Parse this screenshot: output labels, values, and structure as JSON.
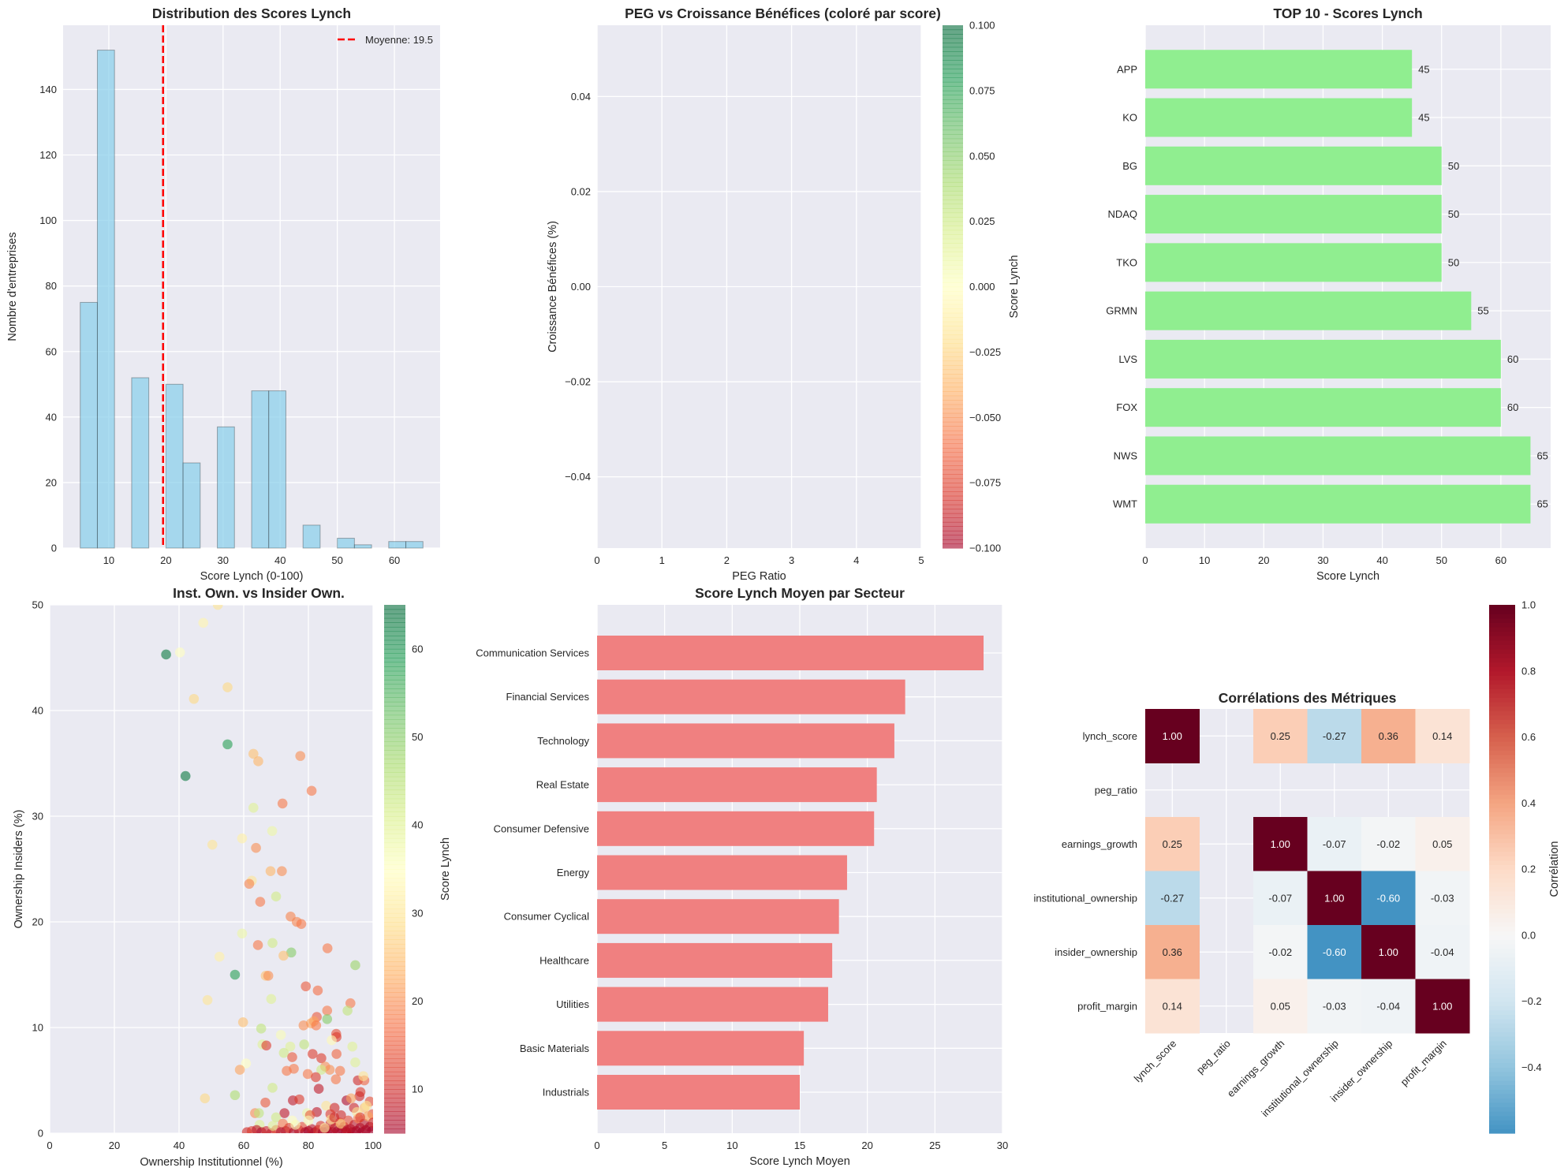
{
  "colors": {
    "axes_bg": "#eaeaf2",
    "grid": "#ffffff",
    "hist_bar": "#87ceeb",
    "mean_line": "#ff0000",
    "top10_bar": "#90ee90",
    "sector_bar": "#f08080"
  },
  "chart_data": [
    {
      "type": "bar",
      "title": "Distribution des Scores Lynch",
      "xlabel": "Score Lynch (0-100)",
      "ylabel": "Nombre d'entreprises",
      "bin_start": 5,
      "bin_width": 3,
      "counts": [
        75,
        152,
        0,
        52,
        0,
        50,
        26,
        0,
        37,
        0,
        48,
        48,
        0,
        7,
        0,
        3,
        1,
        0,
        2,
        2
      ],
      "xlim": [
        2,
        68
      ],
      "ylim": [
        0,
        159.6
      ],
      "xticks": [
        "10",
        "20",
        "30",
        "40",
        "50",
        "60"
      ],
      "yticks": [
        "0",
        "20",
        "40",
        "60",
        "80",
        "100",
        "120",
        "140"
      ],
      "mean": 19.5,
      "legend": {
        "label": "Moyenne: 19.5",
        "position": "top-right"
      },
      "grid": true
    },
    {
      "type": "scatter",
      "title": "PEG vs Croissance Bénéfices (coloré par score)",
      "xlabel": "PEG Ratio",
      "ylabel": "Croissance Bénéfices (%)",
      "points": [],
      "xlim": [
        0,
        5
      ],
      "ylim": [
        -0.055,
        0.055
      ],
      "xticks": [
        "0",
        "1",
        "2",
        "3",
        "4",
        "5"
      ],
      "ytick_values": [
        -0.04,
        -0.02,
        0,
        0.02,
        0.04
      ],
      "yticks": [
        "−0.04",
        "−0.02",
        "0.00",
        "0.02",
        "0.04"
      ],
      "colorbar": {
        "label": "Score Lynch",
        "range": [
          -0.1,
          0.1
        ],
        "cmap": "RdYlGn",
        "tick_values": [
          -0.1,
          -0.075,
          -0.05,
          -0.025,
          0,
          0.025,
          0.05,
          0.075,
          0.1
        ],
        "ticks": [
          "−0.100",
          "−0.075",
          "−0.050",
          "−0.025",
          "0.000",
          "0.025",
          "0.050",
          "0.075",
          "0.100"
        ]
      },
      "grid": true
    },
    {
      "type": "bar",
      "orientation": "horizontal",
      "title": "TOP 10 - Scores Lynch",
      "xlabel": "Score Lynch",
      "categories": [
        "APP",
        "KO",
        "BG",
        "NDAQ",
        "TKO",
        "GRMN",
        "LVS",
        "FOX",
        "NWS",
        "WMT"
      ],
      "values": [
        45,
        45,
        50,
        50,
        50,
        55,
        60,
        60,
        65,
        65
      ],
      "value_labels": [
        "45",
        "45",
        "50",
        "50",
        "50",
        "55",
        "60",
        "60",
        "65",
        "65"
      ],
      "xlim": [
        0,
        68.4
      ],
      "xticks": [
        "0",
        "10",
        "20",
        "30",
        "40",
        "50",
        "60"
      ],
      "grid": true
    },
    {
      "type": "scatter",
      "title": "Inst. Own. vs Insider Own.",
      "xlabel": "Ownership Institutionnel (%)",
      "ylabel": "Ownership Insiders (%)",
      "xlim": [
        0,
        100
      ],
      "ylim": [
        0,
        50
      ],
      "xticks": [
        "0",
        "20",
        "40",
        "60",
        "80",
        "100"
      ],
      "yticks": [
        "0",
        "10",
        "20",
        "30",
        "40",
        "50"
      ],
      "colorbar": {
        "label": "Score Lynch",
        "range": [
          5,
          65
        ],
        "cmap": "RdYlGn",
        "tick_values": [
          10,
          20,
          30,
          40,
          50,
          60
        ],
        "ticks": [
          "10",
          "20",
          "30",
          "40",
          "50",
          "60"
        ]
      },
      "points_xy_score": [
        [
          52,
          50,
          30
        ],
        [
          47.5,
          48.3,
          33
        ],
        [
          36,
          45.3,
          63
        ],
        [
          40.3,
          45.5,
          35
        ],
        [
          55,
          42.2,
          28
        ],
        [
          44.6,
          41.1,
          28
        ],
        [
          55,
          36.8,
          58
        ],
        [
          63,
          35.9,
          25
        ],
        [
          64.5,
          35.2,
          24
        ],
        [
          77.5,
          35.7,
          20
        ],
        [
          42,
          33.8,
          63
        ],
        [
          81,
          32.4,
          18
        ],
        [
          72,
          31.2,
          18
        ],
        [
          63,
          30.8,
          40
        ],
        [
          68.8,
          28.6,
          38
        ],
        [
          59.5,
          27.9,
          32
        ],
        [
          50.3,
          27.3,
          30
        ],
        [
          63.8,
          27,
          20
        ],
        [
          68.3,
          24.8,
          24
        ],
        [
          71.8,
          24.8,
          20
        ],
        [
          62.5,
          23.9,
          30
        ],
        [
          61.7,
          23.6,
          19
        ],
        [
          70,
          22.4,
          42
        ],
        [
          65.1,
          21.9,
          18
        ],
        [
          74.5,
          20.5,
          19
        ],
        [
          76.4,
          20,
          19
        ],
        [
          77.8,
          19.8,
          18
        ],
        [
          59.5,
          18.9,
          38
        ],
        [
          64.4,
          17.8,
          18
        ],
        [
          68.9,
          18,
          42
        ],
        [
          74.7,
          17.1,
          50
        ],
        [
          72.3,
          16.8,
          25
        ],
        [
          52.5,
          16.7,
          32
        ],
        [
          85.9,
          17.5,
          18
        ],
        [
          94.5,
          15.9,
          48
        ],
        [
          57.3,
          15,
          58
        ],
        [
          66.8,
          14.9,
          25
        ],
        [
          67.6,
          14.9,
          20
        ],
        [
          79.2,
          13.9,
          15
        ],
        [
          82.9,
          13.5,
          17
        ],
        [
          48.8,
          12.6,
          30
        ],
        [
          68.5,
          12.7,
          40
        ],
        [
          93,
          12.3,
          18
        ],
        [
          85.8,
          11.6,
          18
        ],
        [
          92.1,
          11.6,
          44
        ],
        [
          82.6,
          11,
          15
        ],
        [
          85.8,
          10.8,
          50
        ],
        [
          59.8,
          10.5,
          25
        ],
        [
          80.8,
          10.4,
          22
        ],
        [
          78.5,
          10.2,
          20
        ],
        [
          81.7,
          10.6,
          22
        ],
        [
          82.4,
          10.2,
          18
        ],
        [
          65.4,
          9.9,
          44
        ],
        [
          71.5,
          9.3,
          36
        ],
        [
          88.6,
          9.4,
          14
        ],
        [
          88.7,
          9.1,
          12
        ],
        [
          87.2,
          8.8,
          34
        ],
        [
          65.8,
          8.4,
          40
        ],
        [
          74.4,
          8.2,
          40
        ],
        [
          78.7,
          8.4,
          44
        ],
        [
          93.6,
          8.2,
          40
        ],
        [
          67,
          8.3,
          12
        ],
        [
          72.4,
          7.6,
          42
        ],
        [
          81.3,
          7.5,
          12
        ],
        [
          84,
          7.1,
          12
        ],
        [
          88.7,
          7.5,
          16
        ],
        [
          75,
          7.2,
          15
        ],
        [
          94.5,
          6.7,
          40
        ],
        [
          60.7,
          6.6,
          35
        ],
        [
          85.2,
          6.3,
          20
        ],
        [
          86.6,
          6,
          20
        ],
        [
          89.8,
          5.9,
          18
        ],
        [
          84,
          6,
          42
        ],
        [
          73.3,
          5.9,
          18
        ],
        [
          75.5,
          6.1,
          18
        ],
        [
          58.8,
          6,
          22
        ],
        [
          79.8,
          5.6,
          18
        ],
        [
          82.3,
          5.3,
          12
        ],
        [
          88.5,
          5.1,
          18
        ],
        [
          95.3,
          5,
          10
        ],
        [
          97.3,
          5,
          16
        ],
        [
          97,
          5.4,
          30
        ],
        [
          83.2,
          4.2,
          8
        ],
        [
          68.9,
          4.3,
          42
        ],
        [
          96.1,
          3.9,
          12
        ],
        [
          95.8,
          3.5,
          10
        ],
        [
          57.3,
          3.6,
          46
        ],
        [
          48,
          3.3,
          28
        ],
        [
          75.2,
          3.1,
          8
        ],
        [
          77.2,
          3.2,
          12
        ],
        [
          91.8,
          3.1,
          6
        ],
        [
          99,
          3,
          14
        ],
        [
          93.2,
          3.3,
          22
        ],
        [
          66.7,
          2.9,
          15
        ],
        [
          85.5,
          2.6,
          30
        ],
        [
          88.1,
          2.4,
          10
        ],
        [
          94.1,
          2.4,
          10
        ],
        [
          97.3,
          2.4,
          25
        ],
        [
          72.6,
          1.9,
          8
        ],
        [
          63.5,
          1.9,
          20
        ],
        [
          64.7,
          1.9,
          44
        ],
        [
          79.6,
          1.9,
          38
        ],
        [
          82.6,
          2,
          8
        ],
        [
          80.5,
          1.7,
          15
        ],
        [
          86.8,
          1.8,
          12
        ],
        [
          90.1,
          1.7,
          10
        ],
        [
          70,
          1.5,
          42
        ],
        [
          99.8,
          1.8,
          15
        ],
        [
          75,
          1.2,
          35
        ],
        [
          64.9,
          0.8,
          40
        ],
        [
          72.1,
          0.9,
          18
        ],
        [
          61,
          0.1,
          10
        ],
        [
          62.5,
          0.2,
          12
        ],
        [
          64,
          0.3,
          8
        ],
        [
          65.5,
          0.1,
          6
        ],
        [
          67,
          0.2,
          10
        ],
        [
          68.5,
          0,
          8
        ],
        [
          70,
          0.3,
          14
        ],
        [
          71.5,
          0.1,
          6
        ],
        [
          73,
          0.2,
          8
        ],
        [
          74,
          0.5,
          12
        ],
        [
          75.5,
          0.1,
          6
        ],
        [
          77,
          0.3,
          8
        ],
        [
          78,
          0.6,
          14
        ],
        [
          79,
          0.1,
          6
        ],
        [
          80,
          0.2,
          5
        ],
        [
          81,
          0.4,
          8
        ],
        [
          82,
          0.1,
          6
        ],
        [
          83,
          0.3,
          10
        ],
        [
          83.8,
          0.7,
          12
        ],
        [
          84.5,
          0.1,
          5
        ],
        [
          85.3,
          0.4,
          8
        ],
        [
          86,
          0.2,
          6
        ],
        [
          86.8,
          0.9,
          10
        ],
        [
          87.5,
          0.1,
          5
        ],
        [
          88.2,
          0.5,
          8
        ],
        [
          89,
          0.2,
          6
        ],
        [
          89.7,
          1,
          12
        ],
        [
          90.4,
          0.3,
          5
        ],
        [
          91,
          0.6,
          8
        ],
        [
          91.7,
          0.1,
          6
        ],
        [
          92.3,
          1.2,
          14
        ],
        [
          93,
          0.4,
          6
        ],
        [
          93.6,
          0.1,
          5
        ],
        [
          94.2,
          0.8,
          8
        ],
        [
          94.8,
          0.2,
          6
        ],
        [
          95.4,
          1.4,
          18
        ],
        [
          96,
          0.5,
          6
        ],
        [
          96.6,
          0.1,
          5
        ],
        [
          97.2,
          0.9,
          8
        ],
        [
          97.8,
          0.3,
          6
        ],
        [
          98.4,
          1.6,
          22
        ],
        [
          99,
          0.6,
          6
        ],
        [
          99.6,
          0.2,
          5
        ],
        [
          100,
          1,
          10
        ],
        [
          95,
          2,
          30
        ],
        [
          98,
          2.6,
          30
        ],
        [
          90,
          0.9,
          28
        ],
        [
          85,
          0.5,
          32
        ],
        [
          76,
          0.8,
          36
        ],
        [
          69,
          0.7,
          40
        ],
        [
          80,
          1.2,
          36
        ],
        [
          87,
          1.3,
          30
        ],
        [
          92,
          0.3,
          8
        ],
        [
          88,
          1.5,
          10
        ],
        [
          96,
          1.5,
          12
        ]
      ],
      "grid": true
    },
    {
      "type": "bar",
      "orientation": "horizontal",
      "title": "Score Lynch Moyen par Secteur",
      "xlabel": "Score Lynch Moyen",
      "categories": [
        "Communication Services",
        "Financial Services",
        "Technology",
        "Real Estate",
        "Consumer Defensive",
        "Energy",
        "Consumer Cyclical",
        "Healthcare",
        "Utilities",
        "Basic Materials",
        "Industrials"
      ],
      "values": [
        28.6,
        22.8,
        22.0,
        20.7,
        20.5,
        18.5,
        17.9,
        17.4,
        17.1,
        15.3,
        15.0
      ],
      "xlim": [
        0,
        30
      ],
      "xticks": [
        "0",
        "5",
        "10",
        "15",
        "20",
        "25",
        "30"
      ],
      "grid": true
    },
    {
      "type": "heatmap",
      "title": "Corrélations des Métriques",
      "labels": [
        "lynch_score",
        "peg_ratio",
        "earnings_growth",
        "institutional_ownership",
        "insider_ownership",
        "profit_margin"
      ],
      "matrix": [
        [
          1.0,
          null,
          0.25,
          -0.27,
          0.36,
          0.14
        ],
        [
          null,
          null,
          null,
          null,
          null,
          null
        ],
        [
          0.25,
          null,
          1.0,
          -0.07,
          -0.02,
          0.05
        ],
        [
          -0.27,
          null,
          -0.07,
          1.0,
          -0.6,
          -0.03
        ],
        [
          0.36,
          null,
          -0.02,
          -0.6,
          1.0,
          -0.04
        ],
        [
          0.14,
          null,
          0.05,
          -0.03,
          -0.04,
          1.0
        ]
      ],
      "annotations": [
        [
          "1.00",
          "",
          "0.25",
          "-0.27",
          "0.36",
          "0.14"
        ],
        [
          "",
          "",
          "",
          "",
          "",
          ""
        ],
        [
          "0.25",
          "",
          "1.00",
          "-0.07",
          "-0.02",
          "0.05"
        ],
        [
          "-0.27",
          "",
          "-0.07",
          "1.00",
          "-0.60",
          "-0.03"
        ],
        [
          "0.36",
          "",
          "-0.02",
          "-0.60",
          "1.00",
          "-0.04"
        ],
        [
          "0.14",
          "",
          "0.05",
          "-0.03",
          "-0.04",
          "1.00"
        ]
      ],
      "colorbar": {
        "label": "Corrélation",
        "range": [
          -0.6,
          1.0
        ],
        "cmap": "RdBu_r",
        "tick_values": [
          -0.4,
          -0.2,
          0,
          0.2,
          0.4,
          0.6,
          0.8,
          1.0
        ],
        "ticks": [
          "−0.4",
          "−0.2",
          "0.0",
          "0.2",
          "0.4",
          "0.6",
          "0.8",
          "1.0"
        ]
      }
    }
  ]
}
